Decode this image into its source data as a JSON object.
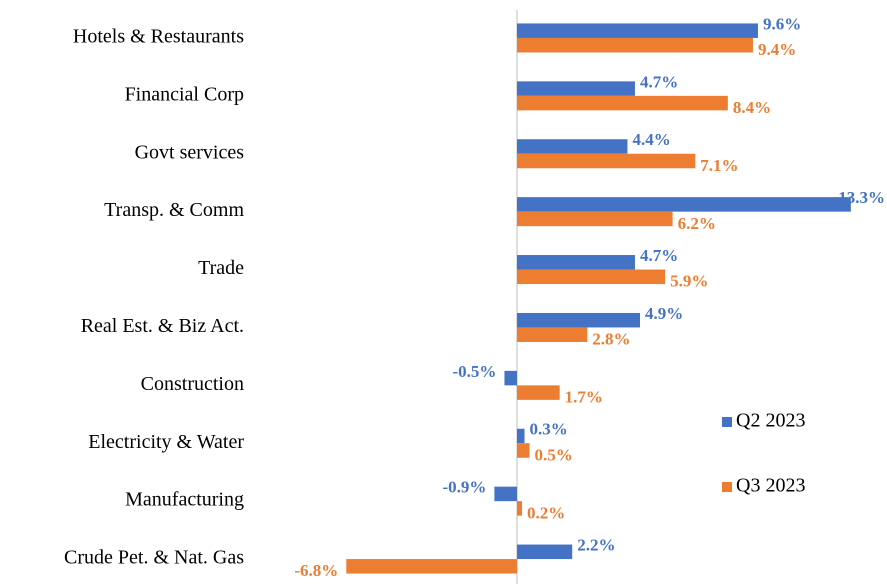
{
  "chart_data": {
    "type": "hbar",
    "categories": [
      "Hotels & Restaurants",
      "Financial Corp",
      "Govt services",
      "Transp. & Comm",
      "Trade",
      "Real Est. & Biz Act.",
      "Construction",
      "Electricity & Water",
      "Manufacturing",
      "Crude Pet. & Nat. Gas"
    ],
    "series": [
      {
        "name": "Q2 2023",
        "color": "#4472c4",
        "values": [
          9.6,
          4.7,
          4.4,
          13.3,
          4.7,
          4.9,
          -0.5,
          0.3,
          -0.9,
          2.2
        ],
        "value_labels": [
          "9.6%",
          "4.7%",
          "4.4%",
          "13.3%",
          "4.7%",
          "4.9%",
          "-0.5%",
          "0.3%",
          "-0.9%",
          "2.2%"
        ]
      },
      {
        "name": "Q3 2023",
        "color": "#ed7d31",
        "values": [
          9.4,
          8.4,
          7.1,
          6.2,
          5.9,
          2.8,
          1.7,
          0.5,
          0.2,
          -6.8
        ],
        "value_labels": [
          "9.4%",
          "8.4%",
          "7.1%",
          "6.2%",
          "5.9%",
          "2.8%",
          "1.7%",
          "0.5%",
          "0.2%",
          "-6.8%"
        ]
      }
    ],
    "xlim": [
      -8,
      14
    ],
    "legend": "right"
  }
}
